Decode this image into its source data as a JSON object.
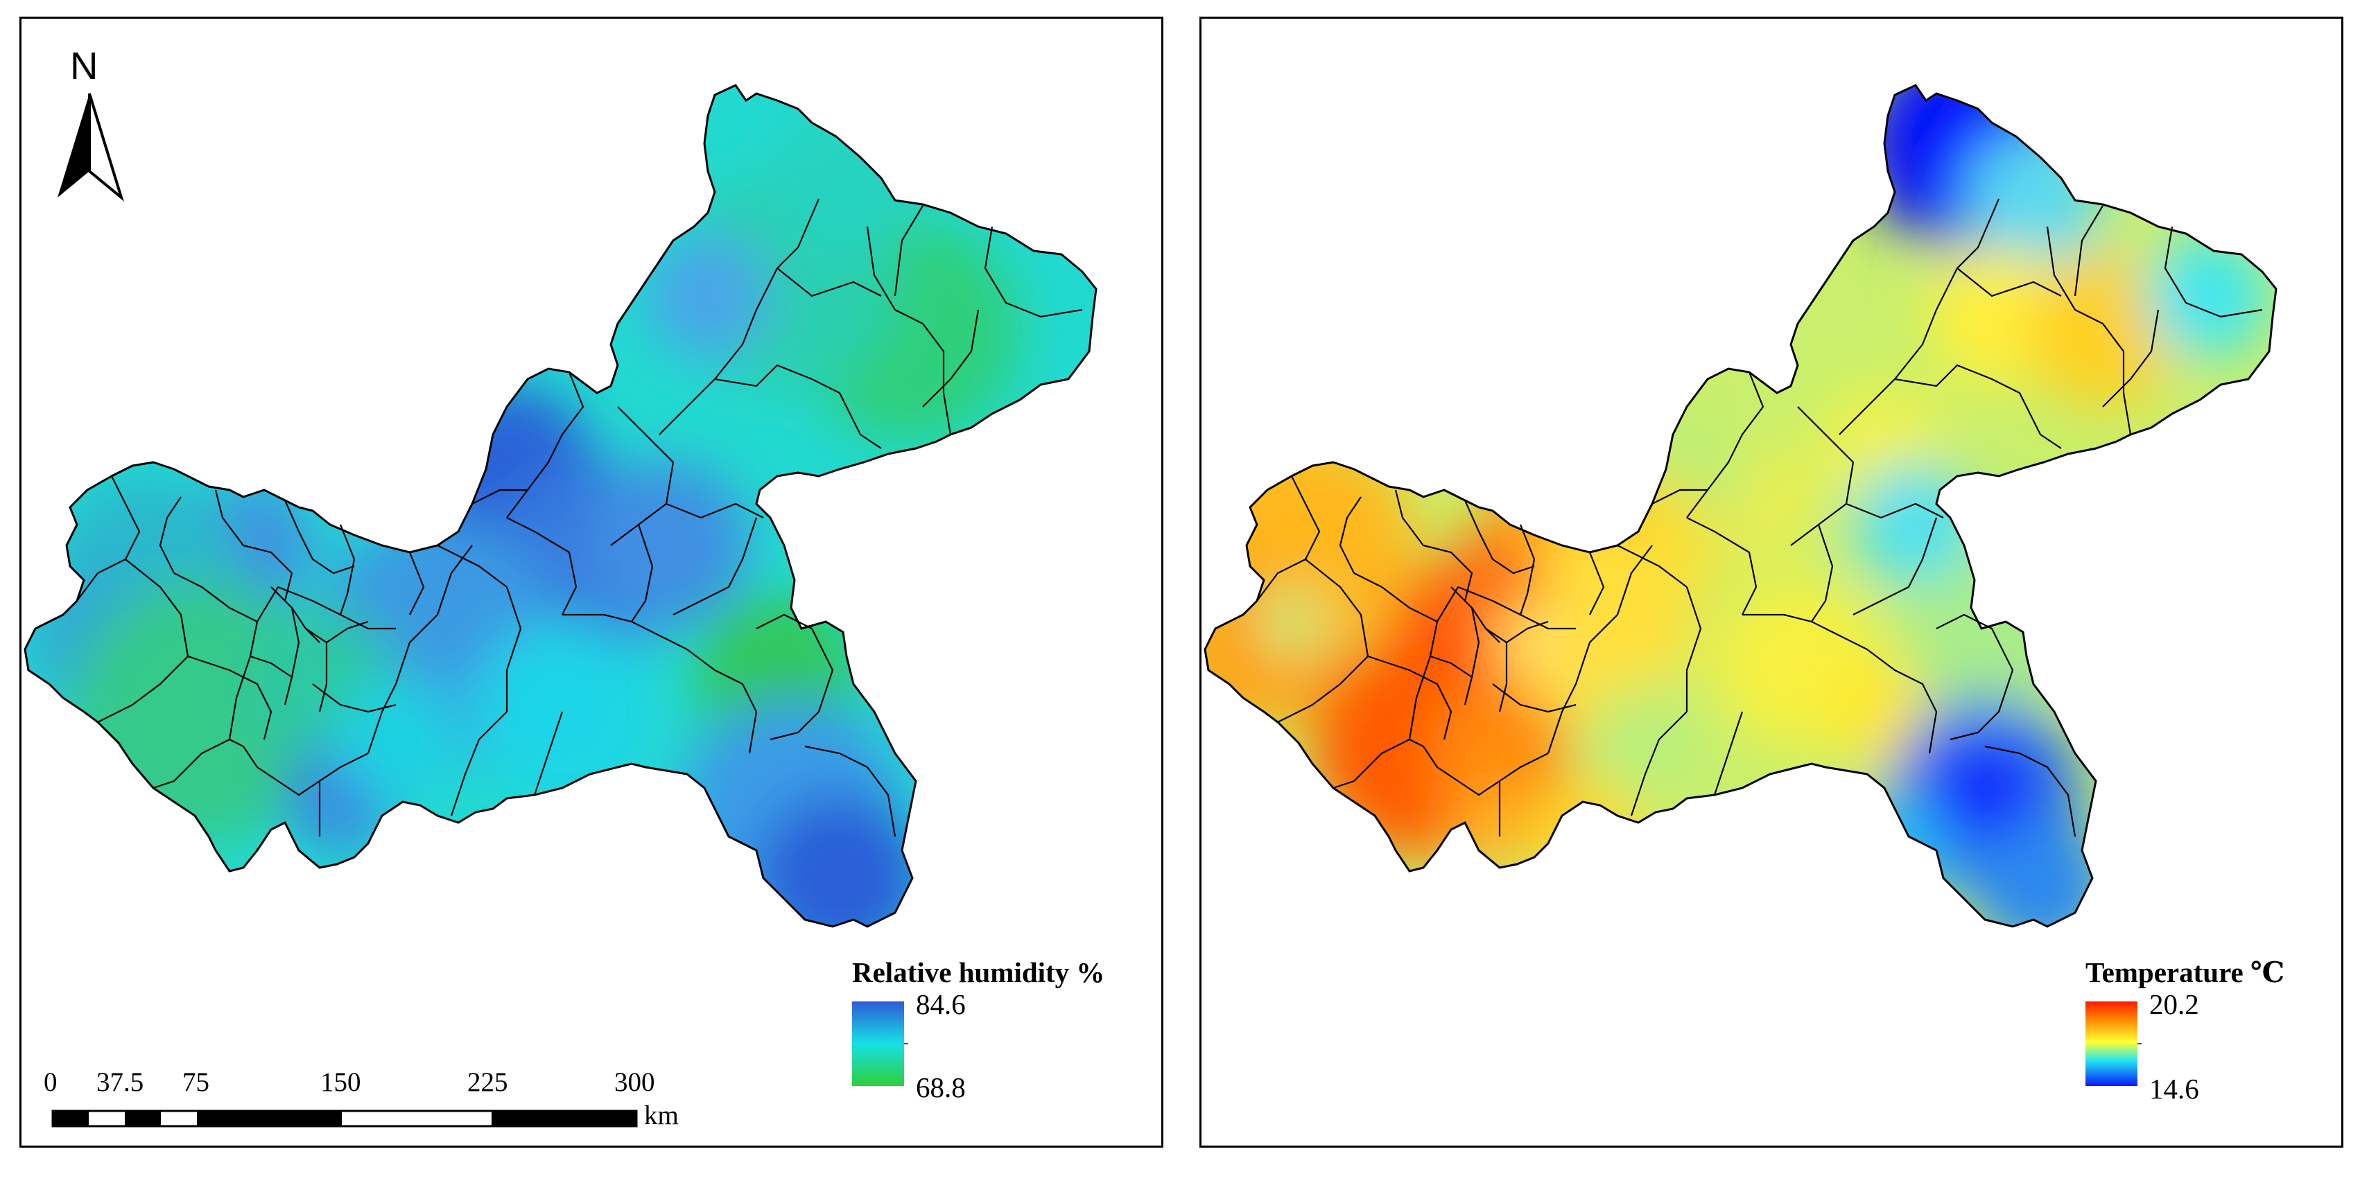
{
  "left_map": {
    "north_label": "N",
    "legend": {
      "title": "Relative humidity %",
      "max": "84.6",
      "min": "68.8",
      "color_max": "#2f5bd6",
      "color_mid": "#16e0e6",
      "color_min": "#2ecf3a"
    },
    "scale_bar": {
      "ticks": [
        "0",
        "37.5",
        "75",
        "150",
        "225",
        "300"
      ],
      "unit": "km"
    }
  },
  "right_map": {
    "legend": {
      "title": "Temperature  ℃",
      "max": "20.2",
      "min": "14.6",
      "color_max": "#ff1a00",
      "color_mid": "#ffff33",
      "color_min": "#0a1aff"
    }
  },
  "colors": {
    "humidity_base": "#20d8d2",
    "temperature_base": "#c8ef6a"
  }
}
